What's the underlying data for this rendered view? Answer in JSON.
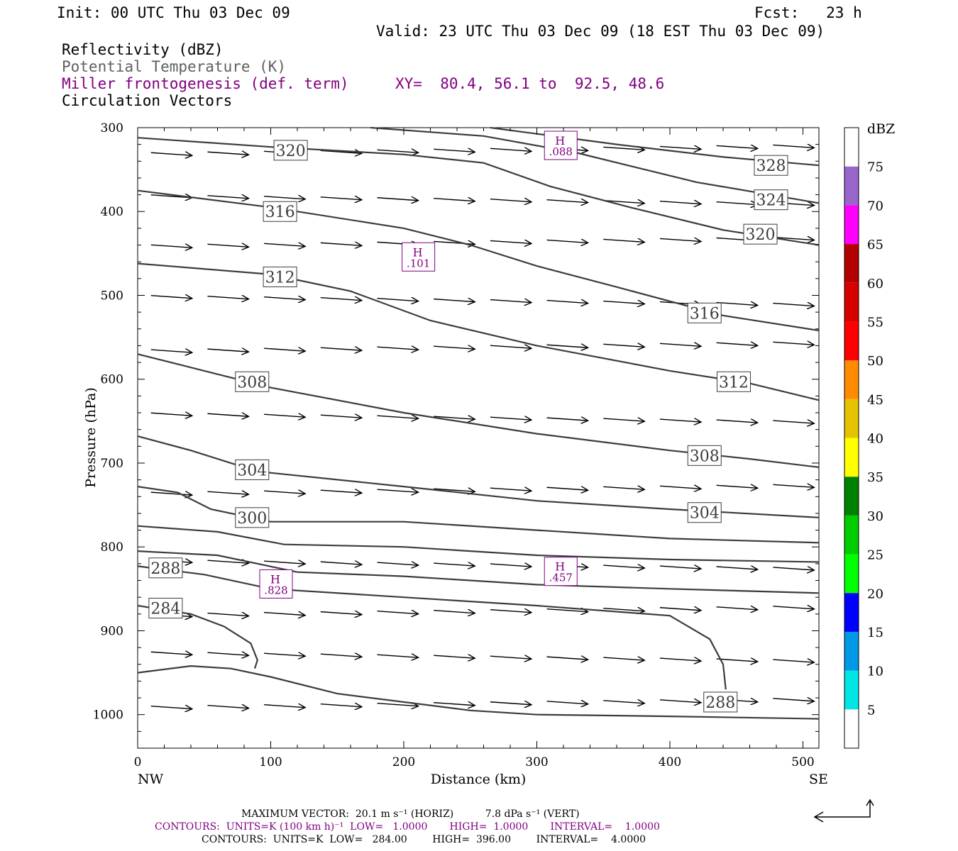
{
  "header": {
    "init": "Init: 00 UTC Thu 03 Dec 09",
    "fcst": "Fcst:   23 h",
    "valid": "Valid: 23 UTC Thu 03 Dec 09 (18 EST Thu 03 Dec 09)"
  },
  "fields": {
    "reflectivity": "Reflectivity (dBZ)",
    "theta": "Potential Temperature (K)",
    "frontogenesis": "Miller frontogenesis (def. term)",
    "circulation": "Circulation Vectors",
    "xy": "XY=  80.4, 56.1 to  92.5, 48.6"
  },
  "colors": {
    "contour": "#3c3c3c",
    "purple": "#800080",
    "scale": [
      "#ffffff",
      "#00e5e5",
      "#0099e6",
      "#0000ff",
      "#00ff00",
      "#00cc00",
      "#008000",
      "#ffff00",
      "#e6c300",
      "#ff8c00",
      "#ff0000",
      "#d70000",
      "#b30000",
      "#ff00ff",
      "#9966cc",
      "#ffffff"
    ]
  },
  "chart_data": {
    "type": "line",
    "xlabel": "Distance (km)",
    "ylabel": "Pressure (hPa)",
    "xlim": [
      0,
      512
    ],
    "ylim": [
      1040,
      300
    ],
    "xticks": [
      0,
      100,
      200,
      300,
      400,
      500
    ],
    "yticks": [
      300,
      400,
      500,
      600,
      700,
      800,
      900,
      1000
    ],
    "xtick_labels": [
      "0",
      "100",
      "200",
      "300",
      "400",
      "500"
    ],
    "ytick_labels": [
      "300",
      "400",
      "500",
      "600",
      "700",
      "800",
      "900",
      "1000"
    ],
    "end_labels": {
      "left": "NW",
      "right": "SE"
    },
    "theta_contours": [
      {
        "value": 324,
        "label": "324",
        "label_at": [
          476,
          386
        ],
        "points": [
          [
            175,
            300
          ],
          [
            260,
            310
          ],
          [
            330,
            330
          ],
          [
            420,
            365
          ],
          [
            512,
            390
          ]
        ]
      },
      {
        "value": 320,
        "label": "320",
        "label_at": [
          115,
          327
        ],
        "label2_at": [
          468,
          427
        ],
        "points": [
          [
            0,
            312
          ],
          [
            100,
            323
          ],
          [
            200,
            332
          ],
          [
            260,
            342
          ],
          [
            310,
            370
          ],
          [
            370,
            395
          ],
          [
            440,
            422
          ],
          [
            512,
            440
          ]
        ]
      },
      {
        "value": 328,
        "label": "328",
        "label_at": [
          476,
          345
        ],
        "points": [
          [
            265,
            300
          ],
          [
            360,
            320
          ],
          [
            440,
            335
          ],
          [
            512,
            345
          ]
        ]
      },
      {
        "value": 316,
        "label": "316",
        "label_at": [
          107,
          400
        ],
        "label2_at": [
          426,
          521
        ],
        "points": [
          [
            0,
            375
          ],
          [
            100,
            395
          ],
          [
            200,
            420
          ],
          [
            250,
            440
          ],
          [
            300,
            465
          ],
          [
            360,
            490
          ],
          [
            440,
            524
          ],
          [
            512,
            542
          ]
        ]
      },
      {
        "value": 312,
        "label": "312",
        "label_at": [
          107,
          478
        ],
        "label2_at": [
          448,
          603
        ],
        "points": [
          [
            0,
            462
          ],
          [
            100,
            475
          ],
          [
            160,
            495
          ],
          [
            220,
            530
          ],
          [
            300,
            560
          ],
          [
            400,
            590
          ],
          [
            460,
            605
          ],
          [
            512,
            625
          ]
        ]
      },
      {
        "value": 308,
        "label": "308",
        "label_at": [
          86,
          603
        ],
        "label2_at": [
          426,
          691
        ],
        "points": [
          [
            0,
            570
          ],
          [
            50,
            590
          ],
          [
            100,
            610
          ],
          [
            200,
            640
          ],
          [
            300,
            665
          ],
          [
            400,
            685
          ],
          [
            460,
            695
          ],
          [
            512,
            705
          ]
        ]
      },
      {
        "value": 304,
        "label": "304",
        "label_at": [
          86,
          708
        ],
        "label2_at": [
          426,
          759
        ],
        "points": [
          [
            0,
            668
          ],
          [
            40,
            685
          ],
          [
            90,
            710
          ],
          [
            200,
            728
          ],
          [
            300,
            745
          ],
          [
            400,
            755
          ],
          [
            512,
            765
          ]
        ]
      },
      {
        "value": 300,
        "label": "300",
        "label_at": [
          86,
          765
        ],
        "points": [
          [
            0,
            728
          ],
          [
            30,
            735
          ],
          [
            55,
            755
          ],
          [
            100,
            770
          ],
          [
            200,
            770
          ],
          [
            300,
            780
          ],
          [
            400,
            790
          ],
          [
            512,
            795
          ]
        ]
      },
      {
        "value": 296,
        "label": "",
        "points": [
          [
            0,
            775
          ],
          [
            60,
            782
          ],
          [
            110,
            797
          ],
          [
            200,
            800
          ],
          [
            300,
            810
          ],
          [
            400,
            815
          ],
          [
            512,
            818
          ]
        ]
      },
      {
        "value": 292,
        "label": "",
        "points": [
          [
            0,
            805
          ],
          [
            60,
            810
          ],
          [
            120,
            830
          ],
          [
            200,
            835
          ],
          [
            300,
            845
          ],
          [
            400,
            850
          ],
          [
            512,
            855
          ]
        ]
      },
      {
        "value": 288,
        "label": "288",
        "label_at": [
          21,
          825
        ],
        "label2_at": [
          438,
          985
        ],
        "points": [
          [
            0,
            823
          ],
          [
            50,
            833
          ],
          [
            100,
            850
          ],
          [
            200,
            860
          ],
          [
            300,
            870
          ],
          [
            400,
            882
          ],
          [
            430,
            910
          ],
          [
            440,
            940
          ],
          [
            442,
            970
          ]
        ]
      },
      {
        "value": 284,
        "label": "284",
        "label_at": [
          21,
          873
        ],
        "points": [
          [
            0,
            870
          ],
          [
            40,
            880
          ],
          [
            65,
            895
          ],
          [
            85,
            915
          ],
          [
            90,
            935
          ],
          [
            88,
            945
          ]
        ]
      },
      {
        "value": 280,
        "label": "",
        "points": [
          [
            0,
            950
          ],
          [
            40,
            942
          ],
          [
            70,
            945
          ],
          [
            100,
            955
          ],
          [
            150,
            975
          ],
          [
            250,
            995
          ],
          [
            300,
            1000
          ],
          [
            400,
            1002
          ],
          [
            512,
            1005
          ]
        ]
      }
    ],
    "frontogenesis_maxima": [
      {
        "symbol": "H",
        "value": ".088",
        "x": 318,
        "p": 322
      },
      {
        "symbol": "H",
        "value": ".101",
        "x": 211,
        "p": 455
      },
      {
        "symbol": "H",
        "value": ".828",
        "x": 104,
        "p": 845
      },
      {
        "symbol": "H",
        "value": ".457",
        "x": 318,
        "p": 830
      }
    ],
    "reflectivity_scale": {
      "unit": "dBZ",
      "levels": [
        "5",
        "10",
        "15",
        "20",
        "25",
        "30",
        "35",
        "40",
        "45",
        "50",
        "55",
        "60",
        "65",
        "70",
        "75"
      ]
    }
  },
  "footer": {
    "max_vector": "MAXIMUM VECTOR:  20.1 m s⁻¹ (HORIZ)          7.8 dPa s⁻¹ (VERT)",
    "contours1": "CONTOURS:  UNITS=K (100 km h)⁻¹  LOW=   1.0000       HIGH=  1.0000       INTERVAL=    1.0000",
    "contours2": "CONTOURS:  UNITS=K  LOW=   284.00        HIGH=  396.00        INTERVAL=    4.0000"
  }
}
